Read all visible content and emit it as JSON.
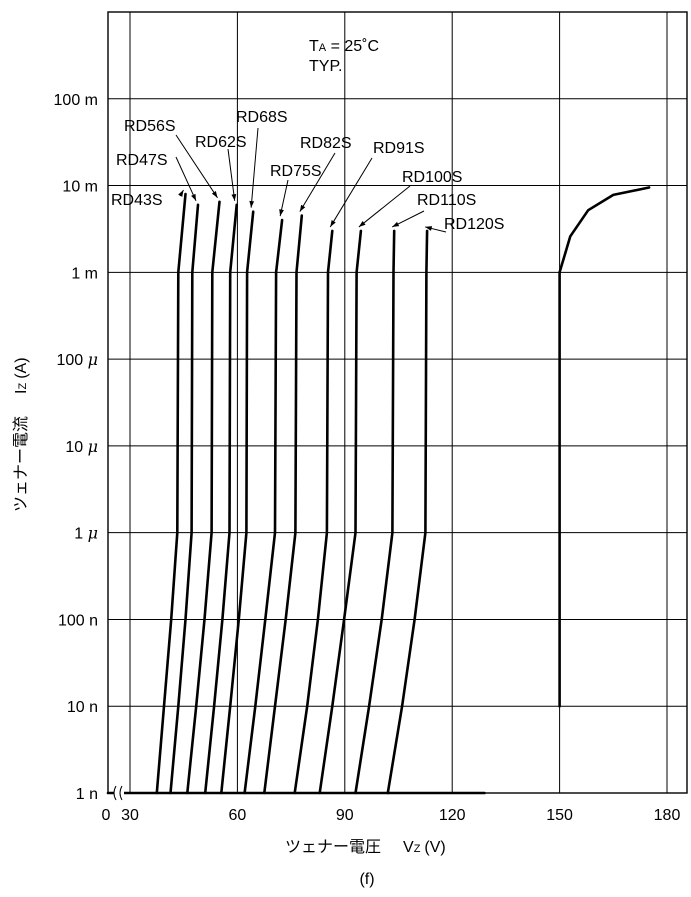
{
  "chart_data": {
    "type": "line",
    "annotation": {
      "line1": "T",
      "line1_sub": "A",
      "line1_rest": " = 25˚C",
      "line2": "TYP."
    },
    "xlabel": {
      "text": "ツェナー電圧",
      "symbol": "V",
      "sub": "Z",
      "unit": "(V)"
    },
    "ylabel": {
      "text": "ツェナー電流",
      "symbol": "I",
      "sub": "Z",
      "unit": "(A)"
    },
    "caption": "(f)",
    "x_ticks": [
      {
        "value": 0,
        "label": "0"
      },
      {
        "value": 30,
        "label": "30"
      },
      {
        "value": 60,
        "label": "60"
      },
      {
        "value": 90,
        "label": "90"
      },
      {
        "value": 120,
        "label": "120"
      },
      {
        "value": 150,
        "label": "150"
      },
      {
        "value": 180,
        "label": "180"
      }
    ],
    "y_ticks": [
      {
        "value": 1e-09,
        "label": "1 n"
      },
      {
        "value": 1e-08,
        "label": "10 n"
      },
      {
        "value": 1e-07,
        "label": "100 n"
      },
      {
        "value": 1e-06,
        "label": "1 μ"
      },
      {
        "value": 1e-05,
        "label": "10 μ"
      },
      {
        "value": 0.0001,
        "label": "100 μ"
      },
      {
        "value": 0.001,
        "label": "1 m"
      },
      {
        "value": 0.01,
        "label": "10 m"
      },
      {
        "value": 0.1,
        "label": "100 m"
      }
    ],
    "xlim": [
      0,
      185
    ],
    "ylim": [
      1e-09,
      1
    ],
    "y_scale": "log",
    "x_axis_break": true,
    "grid": true,
    "series": [
      {
        "name": "RD43S",
        "points": [
          [
            37.5,
            1e-09
          ],
          [
            39.5,
            1e-08
          ],
          [
            41.5,
            1e-07
          ],
          [
            43.2,
            1e-06
          ],
          [
            43.5,
            0.001
          ],
          [
            45.5,
            0.008
          ]
        ]
      },
      {
        "name": "RD47S",
        "points": [
          [
            41.3,
            1e-09
          ],
          [
            43.5,
            1e-08
          ],
          [
            45.5,
            1e-07
          ],
          [
            47.2,
            1e-06
          ],
          [
            47.4,
            0.001
          ],
          [
            49.0,
            0.006
          ]
        ]
      },
      {
        "name": "RD56S",
        "points": [
          [
            46.0,
            1e-09
          ],
          [
            48.5,
            1e-08
          ],
          [
            50.8,
            1e-07
          ],
          [
            52.8,
            1e-06
          ],
          [
            53.0,
            0.001
          ],
          [
            55.0,
            0.0065
          ]
        ]
      },
      {
        "name": "RD62S",
        "points": [
          [
            51.0,
            1e-09
          ],
          [
            53.5,
            1e-08
          ],
          [
            55.8,
            1e-07
          ],
          [
            57.8,
            1e-06
          ],
          [
            58.0,
            0.001
          ],
          [
            59.8,
            0.006
          ]
        ]
      },
      {
        "name": "RD68S",
        "points": [
          [
            55.5,
            1e-09
          ],
          [
            58.0,
            1e-08
          ],
          [
            60.4,
            1e-07
          ],
          [
            62.5,
            1e-06
          ],
          [
            62.7,
            0.001
          ],
          [
            64.4,
            0.005
          ]
        ]
      },
      {
        "name": "RD75S",
        "points": [
          [
            62.0,
            1e-09
          ],
          [
            65.0,
            1e-08
          ],
          [
            67.8,
            1e-07
          ],
          [
            70.5,
            1e-06
          ],
          [
            70.8,
            0.001
          ],
          [
            72.5,
            0.004
          ]
        ]
      },
      {
        "name": "RD82S",
        "points": [
          [
            67.5,
            1e-09
          ],
          [
            70.5,
            1e-08
          ],
          [
            73.5,
            1e-07
          ],
          [
            76.2,
            1e-06
          ],
          [
            76.5,
            0.001
          ],
          [
            78.0,
            0.0045
          ]
        ]
      },
      {
        "name": "RD91S",
        "points": [
          [
            76.0,
            1e-09
          ],
          [
            79.5,
            1e-08
          ],
          [
            82.5,
            1e-07
          ],
          [
            85.0,
            1e-06
          ],
          [
            85.3,
            0.001
          ],
          [
            86.5,
            0.003
          ]
        ]
      },
      {
        "name": "RD100S",
        "points": [
          [
            83.0,
            1e-09
          ],
          [
            86.5,
            1e-08
          ],
          [
            89.8,
            1e-07
          ],
          [
            93.0,
            1e-06
          ],
          [
            93.3,
            0.001
          ],
          [
            94.5,
            0.003
          ]
        ]
      },
      {
        "name": "RD110S",
        "points": [
          [
            93.0,
            1e-09
          ],
          [
            96.8,
            1e-08
          ],
          [
            100.3,
            1e-07
          ],
          [
            103.3,
            1e-06
          ],
          [
            103.6,
            0.001
          ],
          [
            103.8,
            0.003
          ]
        ]
      },
      {
        "name": "RD120S",
        "points": [
          [
            102.0,
            1e-09
          ],
          [
            106.0,
            1e-08
          ],
          [
            109.5,
            1e-07
          ],
          [
            112.5,
            1e-06
          ],
          [
            112.8,
            0.001
          ],
          [
            113.0,
            0.003
          ]
        ]
      },
      {
        "name": "",
        "points": [
          [
            150.0,
            1e-08
          ],
          [
            150.0,
            0.001
          ],
          [
            153.0,
            0.0026
          ],
          [
            158.0,
            0.0052
          ],
          [
            165.0,
            0.0078
          ],
          [
            175.0,
            0.0095
          ]
        ]
      }
    ],
    "curve_labels": [
      {
        "series": "RD43S",
        "text": "RD43S"
      },
      {
        "series": "RD47S",
        "text": "RD47S"
      },
      {
        "series": "RD56S",
        "text": "RD56S"
      },
      {
        "series": "RD62S",
        "text": "RD62S"
      },
      {
        "series": "RD68S",
        "text": "RD68S"
      },
      {
        "series": "RD75S",
        "text": "RD75S"
      },
      {
        "series": "RD82S",
        "text": "RD82S"
      },
      {
        "series": "RD91S",
        "text": "RD91S"
      },
      {
        "series": "RD100S",
        "text": "RD100S"
      },
      {
        "series": "RD110S",
        "text": "RD110S"
      },
      {
        "series": "RD120S",
        "text": "RD120S"
      }
    ]
  }
}
